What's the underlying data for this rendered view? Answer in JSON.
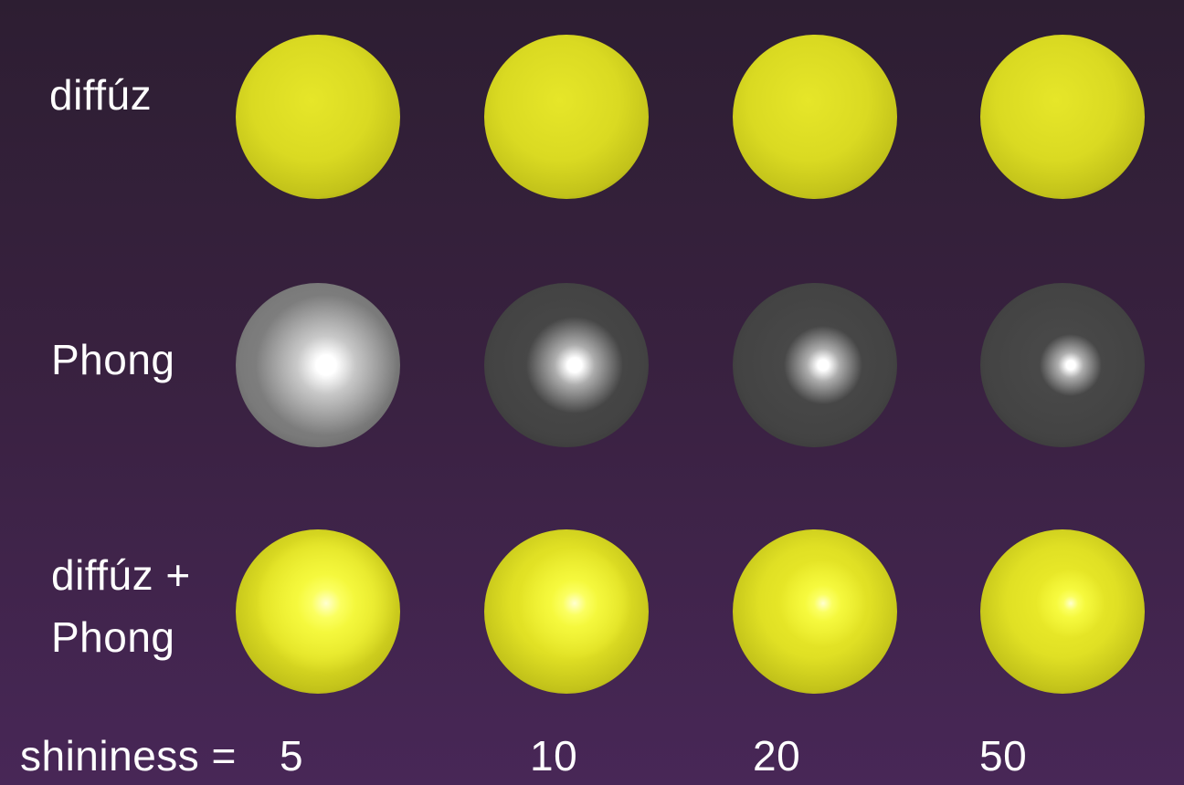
{
  "rows": [
    {
      "label": "diffúz",
      "shading": "diffuse",
      "spheres": [
        {
          "shininess": 5,
          "highlight": 0
        },
        {
          "shininess": 10,
          "highlight": 0
        },
        {
          "shininess": 20,
          "highlight": 0
        },
        {
          "shininess": 50,
          "highlight": 0
        }
      ]
    },
    {
      "label": "Phong",
      "shading": "specular",
      "spheres": [
        {
          "shininess": 5,
          "highlight": 1.0
        },
        {
          "shininess": 10,
          "highlight": 0.6
        },
        {
          "shininess": 20,
          "highlight": 0.45
        },
        {
          "shininess": 50,
          "highlight": 0.3
        }
      ]
    },
    {
      "label_line1": "diffúz +",
      "label_line2": "Phong",
      "shading": "combined",
      "spheres": [
        {
          "shininess": 5,
          "highlight": 1.0
        },
        {
          "shininess": 10,
          "highlight": 0.75
        },
        {
          "shininess": 20,
          "highlight": 0.55
        },
        {
          "shininess": 50,
          "highlight": 0.4
        }
      ]
    }
  ],
  "shininess_label": "shininess =",
  "shininess_values": [
    "5",
    "10",
    "20",
    "50"
  ],
  "colors": {
    "diffuse": "#e2e224",
    "specular_base": "#4a4a4a",
    "specular_base_strong": "#8c8c8c",
    "highlight": "#ffffff"
  }
}
